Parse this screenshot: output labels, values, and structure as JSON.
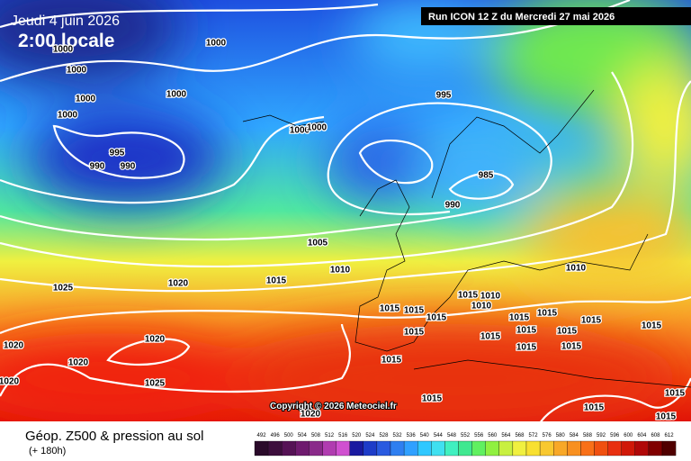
{
  "header": {
    "date": "Jeudi 4 juin 2026",
    "time": "2:00 locale",
    "run": "Run ICON 12 Z du Mercredi 27 mai 2026"
  },
  "copyright": "Copyright © 2026 Meteociel.fr",
  "footer": {
    "title": "Géop. Z500 & pression au sol",
    "subtitle": "(+ 180h)"
  },
  "isobar_labels": [
    "1000",
    "1000",
    "1000",
    "1000",
    "1000",
    "1000",
    "995",
    "990",
    "990",
    "1000",
    "1000",
    "995",
    "985",
    "990",
    "1005",
    "1010",
    "1015",
    "1020",
    "1025",
    "1010",
    "1015",
    "1010",
    "1010",
    "1015",
    "1015",
    "1015",
    "1015",
    "1015",
    "1015",
    "1015",
    "1015",
    "1015",
    "1015",
    "1015",
    "1015",
    "1015",
    "1015",
    "1020",
    "1020",
    "1020",
    "1025",
    "1020",
    "1015",
    "1015",
    "1015",
    "1015",
    "1020"
  ],
  "colorbar": {
    "ticks": [
      492,
      496,
      500,
      504,
      508,
      512,
      516,
      520,
      524,
      528,
      532,
      536,
      540,
      544,
      548,
      552,
      556,
      560,
      564,
      568,
      572,
      576,
      580,
      584,
      588,
      592,
      596,
      600,
      604,
      608,
      612
    ],
    "colors": [
      "#2a0a2a",
      "#3c0e3c",
      "#551255",
      "#6e1a6e",
      "#8a2a8a",
      "#b03cb0",
      "#d050d0",
      "#1a1aa0",
      "#1e3cc8",
      "#2a5ae0",
      "#2f7ff0",
      "#30a0ff",
      "#30c8ff",
      "#40e0f0",
      "#40f0c0",
      "#40e890",
      "#60f060",
      "#90f040",
      "#c8f040",
      "#f0f040",
      "#f8e030",
      "#f8c830",
      "#f8a828",
      "#f89020",
      "#f87018",
      "#f05010",
      "#e83010",
      "#d01808",
      "#b00808",
      "#800000",
      "#500000"
    ]
  }
}
